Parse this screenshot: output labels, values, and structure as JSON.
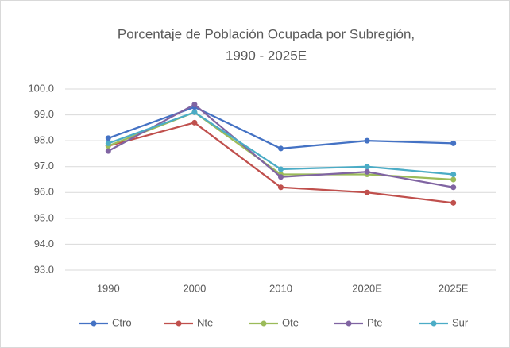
{
  "chart_data": {
    "type": "line",
    "title": [
      "Porcentaje de Población Ocupada por Subregión,",
      "1990 - 2025E"
    ],
    "categories": [
      "1990",
      "2000",
      "2010",
      "2020E",
      "2025E"
    ],
    "series": [
      {
        "name": "Ctro",
        "color": "#4472c4",
        "values": [
          98.1,
          99.3,
          97.7,
          98.0,
          97.9
        ]
      },
      {
        "name": "Nte",
        "color": "#c0504d",
        "values": [
          97.8,
          98.7,
          96.2,
          96.0,
          95.6
        ]
      },
      {
        "name": "Ote",
        "color": "#9bbb59",
        "values": [
          97.8,
          99.1,
          96.7,
          96.7,
          96.5
        ]
      },
      {
        "name": "Pte",
        "color": "#8064a2",
        "values": [
          97.6,
          99.4,
          96.6,
          96.8,
          96.2
        ]
      },
      {
        "name": "Sur",
        "color": "#4bacc6",
        "values": [
          97.9,
          99.1,
          96.9,
          97.0,
          96.7
        ]
      }
    ],
    "ylim": [
      93,
      100
    ],
    "yticks": [
      {
        "value": 93,
        "label": "93.0"
      },
      {
        "value": 94,
        "label": "94.0"
      },
      {
        "value": 95,
        "label": "95.0"
      },
      {
        "value": 96,
        "label": "96.0"
      },
      {
        "value": 97,
        "label": "97.0"
      },
      {
        "value": 98,
        "label": "98.0"
      },
      {
        "value": 99,
        "label": "99.0"
      },
      {
        "value": 100,
        "label": "100.0"
      }
    ],
    "grid": true,
    "legend": "bottom"
  }
}
